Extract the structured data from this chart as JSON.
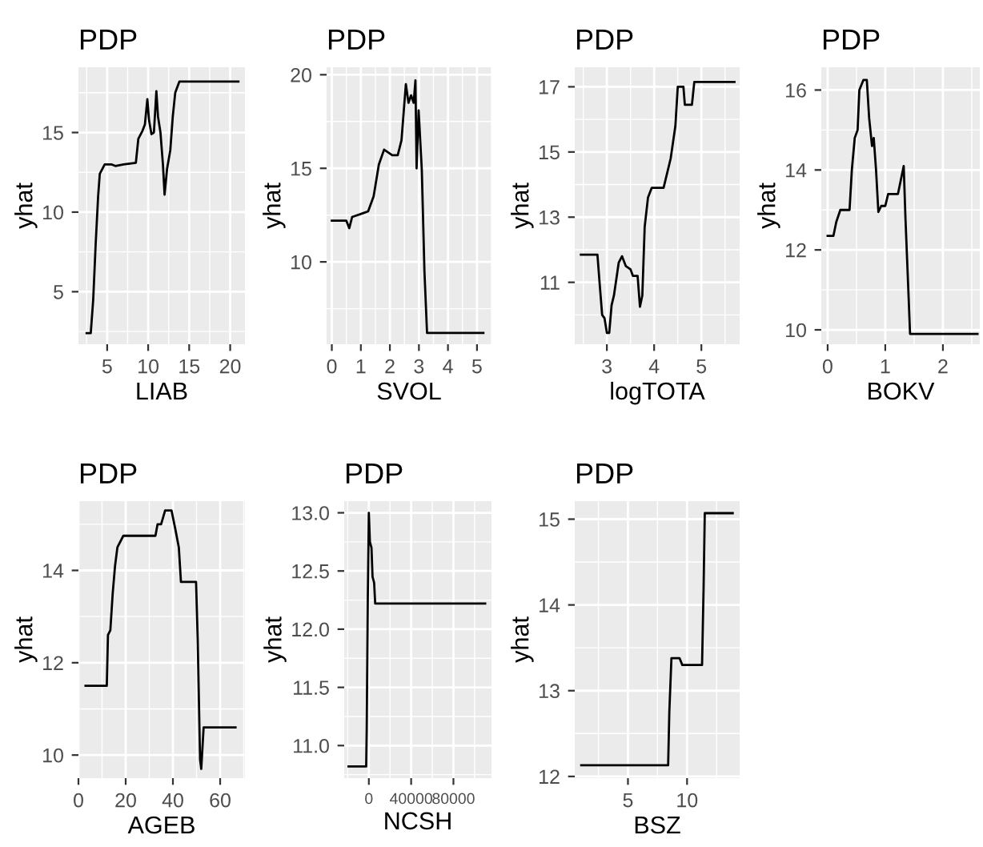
{
  "chart_data": [
    {
      "type": "line",
      "title": "PDP",
      "xlabel": "LIAB",
      "ylabel": "yhat",
      "grid": true,
      "xlim": [
        1.5,
        21.8
      ],
      "ylim": [
        1.7,
        19.1
      ],
      "xticks": [
        5,
        10,
        15,
        20
      ],
      "yticks": [
        5,
        10,
        15
      ],
      "series": [
        {
          "color": "#000000",
          "x": [
            2.5,
            3.0,
            3.3,
            3.6,
            3.9,
            4.1,
            4.7,
            5.5,
            6,
            7,
            8.5,
            8.8,
            9.3,
            9.6,
            9.9,
            10.1,
            10.4,
            10.7,
            11,
            11.2,
            11.5,
            11.8,
            12,
            12.3,
            12.7,
            13,
            13.3,
            13.8,
            21
          ],
          "values": [
            2.4,
            2.4,
            4.5,
            8,
            11,
            12.4,
            13,
            13,
            12.9,
            13,
            13.1,
            14.6,
            15.1,
            15.5,
            17.1,
            15.8,
            14.9,
            15,
            17.6,
            16,
            15,
            13,
            11.1,
            12.7,
            13.9,
            16,
            17.5,
            18.2,
            18.2
          ]
        }
      ]
    },
    {
      "type": "line",
      "title": "PDP",
      "xlabel": "SVOL",
      "ylabel": "yhat",
      "grid": true,
      "xlim": [
        -0.18,
        5.5
      ],
      "ylim": [
        5.6,
        20.4
      ],
      "xticks": [
        0,
        1,
        2,
        3,
        4,
        5
      ],
      "yticks": [
        10,
        15,
        20
      ],
      "series": [
        {
          "color": "#000000",
          "x": [
            0.0,
            0.5,
            0.6,
            0.7,
            1.07,
            1.25,
            1.44,
            1.62,
            1.8,
            2.08,
            2.27,
            2.4,
            2.55,
            2.64,
            2.73,
            2.82,
            2.88,
            2.92,
            2.99,
            3.1,
            3.19,
            3.28,
            5.22
          ],
          "values": [
            12.2,
            12.2,
            11.8,
            12.4,
            12.6,
            12.7,
            13.5,
            15.2,
            16,
            15.7,
            15.7,
            16.5,
            19.5,
            18.5,
            18.9,
            18.5,
            19.7,
            15,
            18.1,
            14.9,
            9.5,
            6.2,
            6.2
          ]
        }
      ]
    },
    {
      "type": "line",
      "title": "PDP",
      "xlabel": "logTOTA",
      "ylabel": "yhat",
      "grid": true,
      "xlim": [
        2.32,
        5.81
      ],
      "ylim": [
        9.1,
        17.6
      ],
      "xticks": [
        3,
        4,
        5
      ],
      "yticks": [
        11,
        13,
        15,
        17
      ],
      "series": [
        {
          "color": "#000000",
          "x": [
            2.45,
            2.8,
            2.85,
            2.9,
            2.95,
            3.0,
            3.05,
            3.1,
            3.15,
            3.25,
            3.32,
            3.4,
            3.5,
            3.55,
            3.65,
            3.7,
            3.75,
            3.8,
            3.87,
            3.95,
            4.2,
            4.35,
            4.45,
            4.5,
            4.62,
            4.65,
            4.8,
            4.85,
            5.7
          ],
          "values": [
            11.85,
            11.85,
            10.9,
            10.0,
            9.9,
            9.45,
            9.45,
            10.3,
            10.6,
            11.6,
            11.8,
            11.5,
            11.4,
            11.2,
            11.2,
            10.25,
            10.6,
            12.7,
            13.6,
            13.9,
            13.9,
            14.8,
            15.8,
            17.0,
            17.0,
            16.45,
            16.45,
            17.15,
            17.15
          ]
        }
      ]
    },
    {
      "type": "line",
      "title": "PDP",
      "xlabel": "BOKV",
      "ylabel": "yhat",
      "grid": true,
      "xlim": [
        -0.11,
        2.64
      ],
      "ylim": [
        9.64,
        16.57
      ],
      "xticks": [
        0,
        1,
        2
      ],
      "yticks": [
        10,
        12,
        14,
        16
      ],
      "series": [
        {
          "color": "#000000",
          "x": [
            0.0,
            0.1,
            0.15,
            0.22,
            0.38,
            0.42,
            0.47,
            0.52,
            0.55,
            0.62,
            0.68,
            0.72,
            0.77,
            0.8,
            0.84,
            0.88,
            0.93,
            1.0,
            1.05,
            1.22,
            1.32,
            1.35,
            1.4,
            1.43,
            2.6
          ],
          "values": [
            12.35,
            12.35,
            12.7,
            13,
            13,
            14,
            14.8,
            15,
            16,
            16.25,
            16.25,
            15.3,
            14.6,
            14.8,
            14,
            12.95,
            13.1,
            13.1,
            13.4,
            13.4,
            14.1,
            12.8,
            11,
            9.9,
            9.9
          ]
        }
      ]
    },
    {
      "type": "line",
      "title": "PDP",
      "xlabel": "AGEB",
      "ylabel": "yhat",
      "grid": true,
      "xlim": [
        0,
        70.5
      ],
      "ylim": [
        9.5,
        15.5
      ],
      "xticks": [
        0,
        20,
        40,
        60
      ],
      "yticks": [
        10,
        12,
        14
      ],
      "series": [
        {
          "color": "#000000",
          "x": [
            3,
            12,
            12.5,
            13.5,
            14.5,
            15.5,
            16.5,
            19,
            32.6,
            33.5,
            35,
            36.7,
            39.4,
            41,
            42.5,
            43.4,
            49.8,
            50.5,
            51,
            51.5,
            52,
            53,
            66.5
          ],
          "values": [
            11.5,
            11.5,
            12.6,
            12.7,
            13.5,
            14.1,
            14.5,
            14.75,
            14.75,
            15,
            15,
            15.3,
            15.3,
            14.9,
            14.5,
            13.75,
            13.75,
            12.5,
            11.2,
            9.9,
            9.7,
            10.6,
            10.6
          ]
        }
      ]
    },
    {
      "type": "line",
      "title": "PDP",
      "xlabel": "NCSH",
      "ylabel": "yhat",
      "grid": true,
      "xlim": [
        -23300,
        116000
      ],
      "ylim": [
        10.72,
        13.1
      ],
      "xticks": [
        0,
        40000,
        80000
      ],
      "yticks": [
        {
          "value": 11,
          "label": "11.0"
        },
        {
          "value": 11.5,
          "label": "11.5"
        },
        {
          "value": 12,
          "label": "12.0"
        },
        {
          "value": 12.5,
          "label": "12.5"
        },
        {
          "value": 13,
          "label": "13.0"
        }
      ],
      "series": [
        {
          "color": "#000000",
          "x": [
            -19200,
            -2500,
            -2000,
            -1000,
            0,
            1000,
            2500,
            3500,
            5000,
            6000,
            110000
          ],
          "values": [
            10.82,
            10.82,
            11.15,
            12.25,
            13.0,
            12.75,
            12.7,
            12.45,
            12.4,
            12.22,
            12.22
          ]
        }
      ]
    },
    {
      "type": "line",
      "title": "PDP",
      "xlabel": "BSZ",
      "ylabel": "yhat",
      "grid": true,
      "xlim": [
        0.5,
        14.45
      ],
      "ylim": [
        11.98,
        15.21
      ],
      "xticks": [
        5,
        10
      ],
      "yticks": [
        12,
        13,
        14,
        15
      ],
      "series": [
        {
          "color": "#000000",
          "x": [
            1.05,
            8.4,
            8.5,
            8.68,
            9.36,
            9.6,
            11.27,
            11.4,
            11.5,
            13.86
          ],
          "values": [
            12.13,
            12.13,
            12.75,
            13.38,
            13.38,
            13.3,
            13.3,
            14.2,
            15.07,
            15.07
          ]
        }
      ]
    }
  ]
}
